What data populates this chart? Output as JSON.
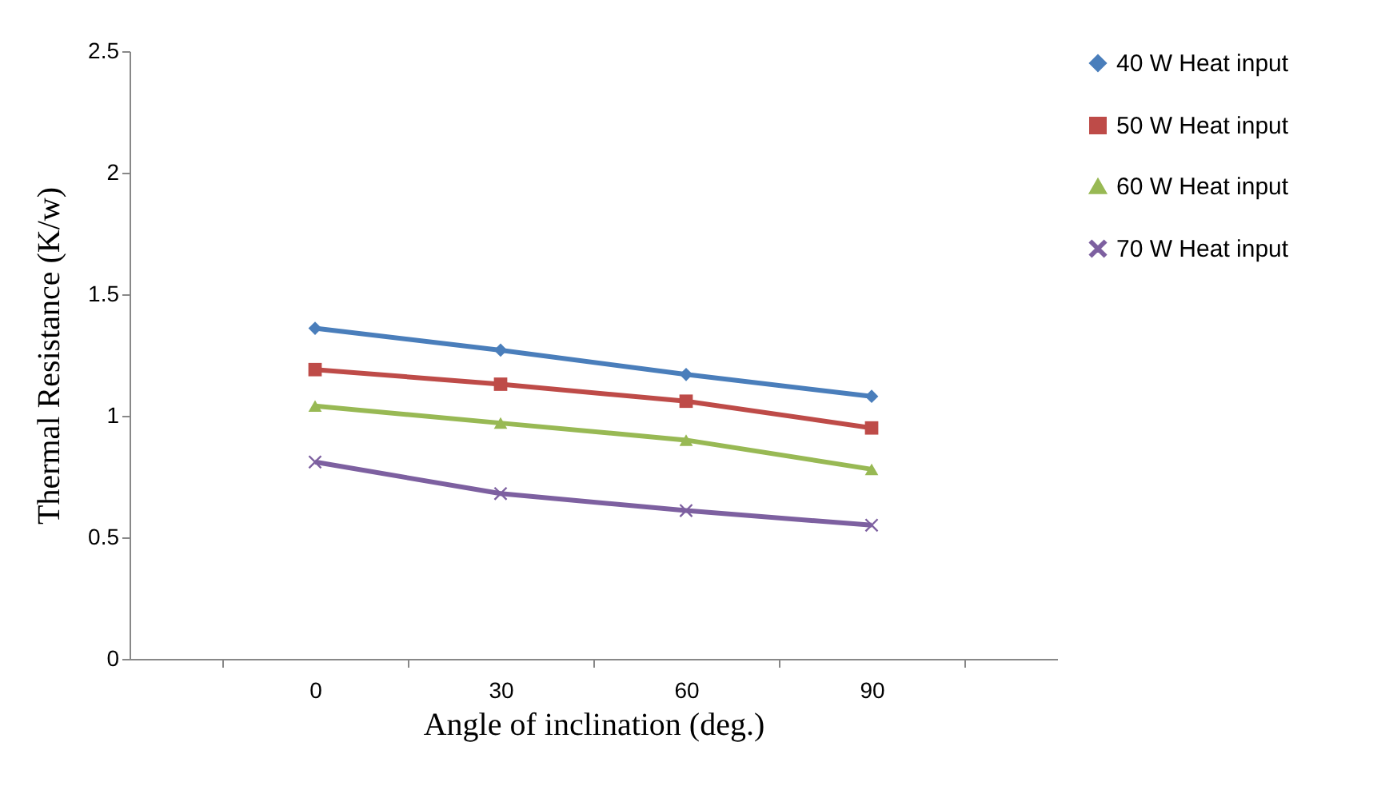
{
  "chart_data": {
    "type": "line",
    "xlabel": "Angle of inclination (deg.)",
    "ylabel": "Thermal Resistance (K/w)",
    "categories": [
      "0",
      "30",
      "60",
      "90"
    ],
    "series": [
      {
        "name": "40 W Heat input",
        "color": "#4a7ebb",
        "marker": "diamond",
        "values": [
          1.36,
          1.27,
          1.17,
          1.08
        ]
      },
      {
        "name": "50 W Heat input",
        "color": "#be4b48",
        "marker": "square",
        "values": [
          1.19,
          1.13,
          1.06,
          0.95
        ]
      },
      {
        "name": "60 W Heat input",
        "color": "#98b954",
        "marker": "triangle",
        "values": [
          1.04,
          0.97,
          0.9,
          0.78
        ]
      },
      {
        "name": "70 W Heat input",
        "color": "#7d60a0",
        "marker": "cross",
        "values": [
          0.81,
          0.68,
          0.61,
          0.55
        ]
      }
    ],
    "ylim": [
      0,
      2.5
    ],
    "yticks": [
      0,
      0.5,
      1,
      1.5,
      2,
      2.5
    ],
    "grid": false,
    "legend": "right"
  }
}
